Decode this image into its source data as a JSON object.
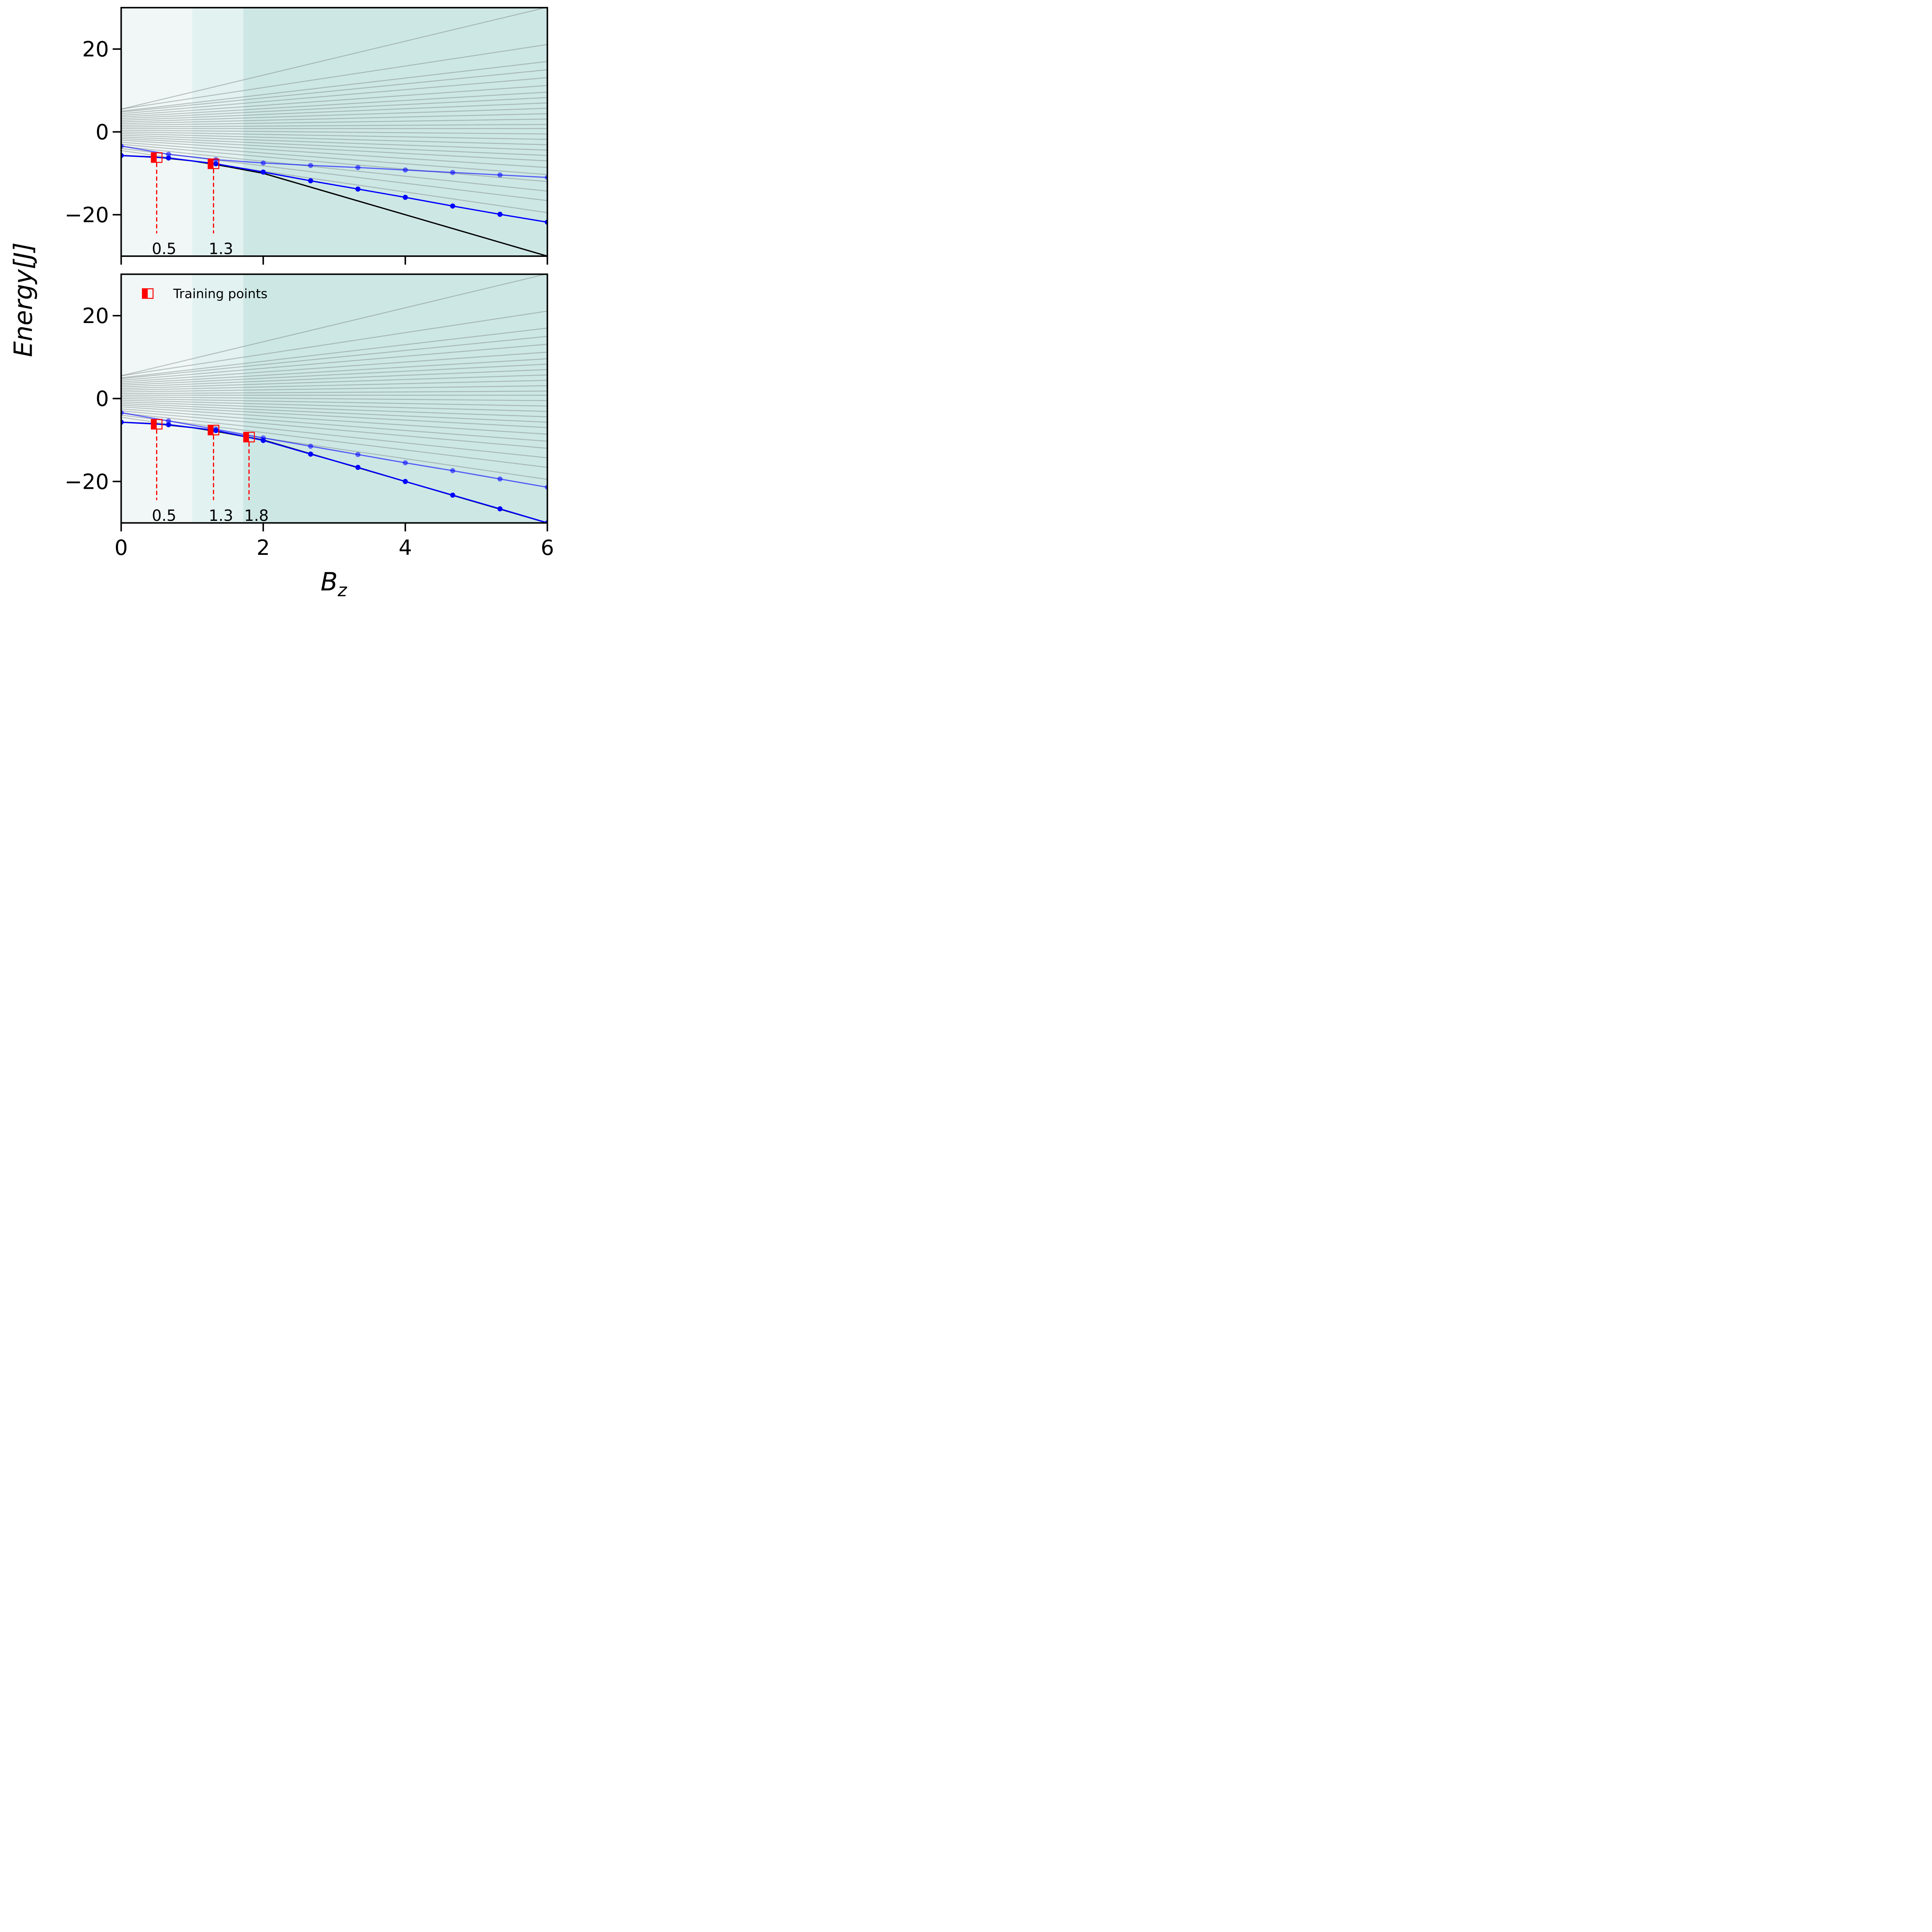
{
  "chart_data": {
    "type": "line",
    "shared_ylabel": "Energy[J]",
    "shared_xlabel": "B_z",
    "xlim": [
      0,
      6
    ],
    "ylim": [
      -30,
      30
    ],
    "xticks": [
      0,
      2,
      4,
      6
    ],
    "yticks": [
      -20,
      0,
      20
    ],
    "colors": {
      "region_light": "#f0f7f6",
      "region_mid": "#e2f2f0",
      "region_dark": "#cde7e5",
      "spectrum": "#7f8a89",
      "exact_ground": "#000000",
      "prediction": "#0000ff",
      "training": "#ff0000"
    },
    "legend": {
      "label": "Training points",
      "position": "top-left",
      "panel": 1
    },
    "panels": [
      {
        "shading": [
          [
            0,
            1.0
          ],
          [
            1.0,
            1.72
          ],
          [
            1.72,
            6
          ]
        ],
        "training_points": [
          {
            "x": 0.5,
            "label": "0.5",
            "y_ground": -6.2,
            "y_excited": -6.2
          },
          {
            "x": 1.3,
            "label": "1.3",
            "y_ground": -7.7,
            "y_excited": -7.7
          }
        ],
        "exact_ground": {
          "x": [
            0,
            0.5,
            1.0,
            1.3,
            1.5,
            2.0,
            3.0,
            4.0,
            5.0,
            6.0
          ],
          "y": [
            -5.7,
            -6.1,
            -7.0,
            -7.8,
            -8.4,
            -10.0,
            -15.0,
            -20.0,
            -25.0,
            -30.0
          ]
        },
        "predicted_ground": {
          "x": [
            0,
            0.667,
            1.333,
            2.0,
            2.667,
            3.333,
            4.0,
            4.667,
            5.333,
            6.0
          ],
          "y": [
            -5.7,
            -6.3,
            -7.7,
            -9.7,
            -11.8,
            -13.8,
            -15.8,
            -17.9,
            -19.9,
            -21.8
          ]
        },
        "predicted_excited": {
          "x": [
            0,
            0.667,
            1.333,
            2.0,
            2.667,
            3.333,
            4.0,
            4.667,
            5.333,
            6.0
          ],
          "y": [
            -3.4,
            -5.4,
            -6.7,
            -7.5,
            -8.1,
            -8.6,
            -9.2,
            -9.8,
            -10.4,
            -11.0
          ]
        }
      },
      {
        "shading": [
          [
            0,
            1.0
          ],
          [
            1.0,
            1.72
          ],
          [
            1.72,
            6
          ]
        ],
        "training_points": [
          {
            "x": 0.5,
            "label": "0.5",
            "y_ground": -6.2,
            "y_excited": -6.2
          },
          {
            "x": 1.3,
            "label": "1.3",
            "y_ground": -7.6,
            "y_excited": -7.6
          },
          {
            "x": 1.8,
            "label": "1.8",
            "y_ground": -9.3,
            "y_excited": -9.3
          }
        ],
        "exact_ground": {
          "x": [
            0,
            0.5,
            1.0,
            1.3,
            1.5,
            2.0,
            3.0,
            4.0,
            5.0,
            6.0
          ],
          "y": [
            -5.7,
            -6.1,
            -7.0,
            -7.8,
            -8.4,
            -10.0,
            -15.0,
            -20.0,
            -25.0,
            -30.0
          ]
        },
        "predicted_ground": {
          "x": [
            0,
            0.667,
            1.333,
            2.0,
            2.667,
            3.333,
            4.0,
            4.667,
            5.333,
            6.0
          ],
          "y": [
            -5.7,
            -6.3,
            -7.7,
            -10.1,
            -13.4,
            -16.6,
            -20.0,
            -23.3,
            -26.6,
            -30.0
          ]
        },
        "predicted_excited": {
          "x": [
            0,
            0.667,
            1.333,
            2.0,
            2.667,
            3.333,
            4.0,
            4.667,
            5.333,
            6.0
          ],
          "y": [
            -3.4,
            -5.4,
            -7.4,
            -9.5,
            -11.5,
            -13.5,
            -15.5,
            -17.4,
            -19.4,
            -21.4
          ]
        }
      }
    ],
    "spectrum": [
      {
        "y0": -4.5,
        "slope": -2.5
      },
      {
        "y0": -4.0,
        "slope": -2.1
      },
      {
        "y0": -3.5,
        "slope": -1.8
      },
      {
        "y0": -3.0,
        "slope": -1.5
      },
      {
        "y0": -2.5,
        "slope": -1.3
      },
      {
        "y0": -2.0,
        "slope": -1.1
      },
      {
        "y0": -1.6,
        "slope": -0.9
      },
      {
        "y0": -1.2,
        "slope": -0.75
      },
      {
        "y0": -0.8,
        "slope": -0.6
      },
      {
        "y0": -0.4,
        "slope": -0.45
      },
      {
        "y0": 0.0,
        "slope": -0.3
      },
      {
        "y0": 0.4,
        "slope": -0.15
      },
      {
        "y0": 0.8,
        "slope": 0.0
      },
      {
        "y0": 1.2,
        "slope": 0.1
      },
      {
        "y0": 1.6,
        "slope": 0.25
      },
      {
        "y0": 2.0,
        "slope": 0.4
      },
      {
        "y0": 2.4,
        "slope": 0.55
      },
      {
        "y0": 2.8,
        "slope": 0.7
      },
      {
        "y0": 3.2,
        "slope": 0.85
      },
      {
        "y0": 3.6,
        "slope": 1.0
      },
      {
        "y0": 4.0,
        "slope": 1.2
      },
      {
        "y0": 4.4,
        "slope": 1.45
      },
      {
        "y0": 4.8,
        "slope": 1.7
      },
      {
        "y0": 5.0,
        "slope": 2.0
      },
      {
        "y0": 5.5,
        "slope": 2.6
      },
      {
        "y0": 5.5,
        "slope": 4.1
      }
    ]
  }
}
